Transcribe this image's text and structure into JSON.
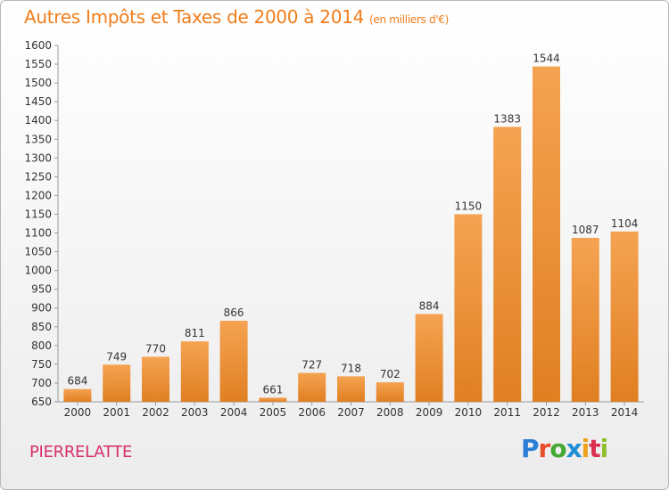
{
  "title": "Autres Impôts et Taxes de 2000 à 2014",
  "subtitle": "(en milliers d'€)",
  "city": "PIERRELATTE",
  "logo": {
    "text": "Proxiti",
    "letter_colors": [
      "#2b7fd6",
      "#e84e2b",
      "#44a832",
      "#1f8fd6",
      "#f0a11a",
      "#d9304f",
      "#8fbf2a"
    ]
  },
  "colors": {
    "bar": "#f5a352",
    "bar_dark": "#e07f22",
    "title": "#f07d1a",
    "city": "#d62e6c"
  },
  "chart_data": {
    "type": "bar",
    "title": "Autres Impôts et Taxes de 2000 à 2014",
    "subtitle": "(en milliers d'€)",
    "categories": [
      "2000",
      "2001",
      "2002",
      "2003",
      "2004",
      "2005",
      "2006",
      "2007",
      "2008",
      "2009",
      "2010",
      "2011",
      "2012",
      "2013",
      "2014"
    ],
    "values": [
      684,
      749,
      770,
      811,
      866,
      661,
      727,
      718,
      702,
      884,
      1150,
      1383,
      1544,
      1087,
      1104
    ],
    "ylim": [
      650,
      1600
    ],
    "ytick_step": 50,
    "grid": false,
    "legend": "none"
  }
}
